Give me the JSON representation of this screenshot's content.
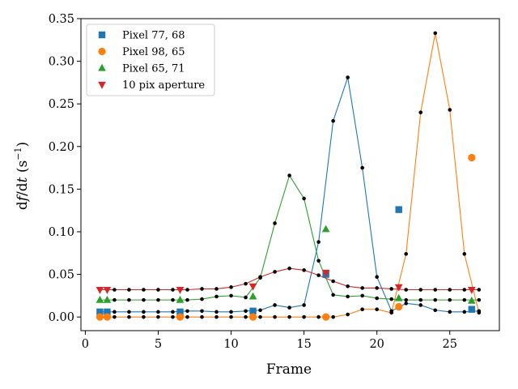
{
  "chart_data": {
    "type": "scatter",
    "title": "",
    "xlabel": "Frame",
    "ylabel": "df/dt (s⁻¹)",
    "ylabel_parts": {
      "d1": "d",
      "f": "f",
      "slash": "/d",
      "t": "t",
      "unit_open": " (s",
      "unit_exp": "−1",
      "unit_close": ")"
    },
    "xlim": [
      -0.3,
      28.4
    ],
    "ylim": [
      -0.016,
      0.35
    ],
    "x_ticks": [
      0,
      5,
      10,
      15,
      20,
      25
    ],
    "x_tick_labels": [
      "0",
      "5",
      "10",
      "15",
      "20",
      "25"
    ],
    "y_ticks": [
      0.0,
      0.05,
      0.1,
      0.15,
      0.2,
      0.25,
      0.3,
      0.35
    ],
    "y_tick_labels": [
      "0.00",
      "0.05",
      "0.10",
      "0.15",
      "0.20",
      "0.25",
      "0.30",
      "0.35"
    ],
    "grid": false,
    "legend_position": "top-left",
    "x": [
      1,
      2,
      3,
      4,
      5,
      6,
      7,
      8,
      9,
      10,
      11,
      12,
      13,
      14,
      15,
      16,
      17,
      18,
      19,
      20,
      21,
      22,
      23,
      24,
      25,
      26,
      27
    ],
    "series": [
      {
        "name": "Pixel 77, 68",
        "color": "#1f77b4",
        "marker": "square",
        "line_values": [
          0.006,
          0.006,
          0.006,
          0.006,
          0.006,
          0.006,
          0.007,
          0.007,
          0.006,
          0.006,
          0.007,
          0.008,
          0.014,
          0.011,
          0.014,
          0.088,
          0.23,
          0.281,
          0.175,
          0.047,
          0.007,
          0.016,
          0.014,
          0.008,
          0.006,
          0.006,
          0.007
        ],
        "markers": [
          [
            1.0,
            0.006
          ],
          [
            1.5,
            0.006
          ],
          [
            6.5,
            0.006
          ],
          [
            11.5,
            0.007
          ],
          [
            16.5,
            0.05
          ],
          [
            21.5,
            0.126
          ],
          [
            26.5,
            0.009
          ]
        ]
      },
      {
        "name": "Pixel 98, 65",
        "color": "#ff7f0e",
        "marker": "circle",
        "line_values": [
          0.0,
          0.0,
          0.0,
          0.0,
          0.0,
          0.0,
          0.0,
          0.0,
          0.0,
          0.0,
          0.0,
          0.0,
          0.0,
          0.0,
          0.0,
          0.0,
          0.0,
          0.003,
          0.009,
          0.009,
          0.005,
          0.074,
          0.24,
          0.333,
          0.243,
          0.074,
          0.005
        ],
        "markers": [
          [
            1.0,
            0.0
          ],
          [
            1.5,
            0.0
          ],
          [
            6.5,
            0.0
          ],
          [
            11.5,
            0.0
          ],
          [
            16.5,
            0.0
          ],
          [
            21.5,
            0.012
          ],
          [
            26.5,
            0.187
          ]
        ]
      },
      {
        "name": "Pixel 65, 71",
        "color": "#2ca02c",
        "marker": "triangle-up",
        "line_values": [
          0.02,
          0.02,
          0.02,
          0.02,
          0.02,
          0.02,
          0.02,
          0.021,
          0.024,
          0.025,
          0.023,
          0.046,
          0.11,
          0.166,
          0.139,
          0.066,
          0.026,
          0.024,
          0.025,
          0.022,
          0.021,
          0.02,
          0.02,
          0.02,
          0.02,
          0.02,
          0.02
        ],
        "markers": [
          [
            1.0,
            0.02
          ],
          [
            1.5,
            0.02
          ],
          [
            6.5,
            0.02
          ],
          [
            11.5,
            0.024
          ],
          [
            16.5,
            0.103
          ],
          [
            21.5,
            0.022
          ],
          [
            26.5,
            0.019
          ]
        ]
      },
      {
        "name": "10 pix aperture",
        "color": "#d62728",
        "marker": "triangle-down",
        "line_values": [
          0.032,
          0.032,
          0.032,
          0.032,
          0.032,
          0.032,
          0.032,
          0.033,
          0.033,
          0.035,
          0.039,
          0.047,
          0.053,
          0.057,
          0.055,
          0.049,
          0.042,
          0.036,
          0.034,
          0.034,
          0.033,
          0.032,
          0.032,
          0.032,
          0.032,
          0.032,
          0.032
        ],
        "markers": [
          [
            1.0,
            0.032
          ],
          [
            1.5,
            0.032
          ],
          [
            6.5,
            0.032
          ],
          [
            11.5,
            0.036
          ],
          [
            16.5,
            0.052
          ],
          [
            21.5,
            0.035
          ],
          [
            26.5,
            0.032
          ]
        ]
      }
    ]
  }
}
